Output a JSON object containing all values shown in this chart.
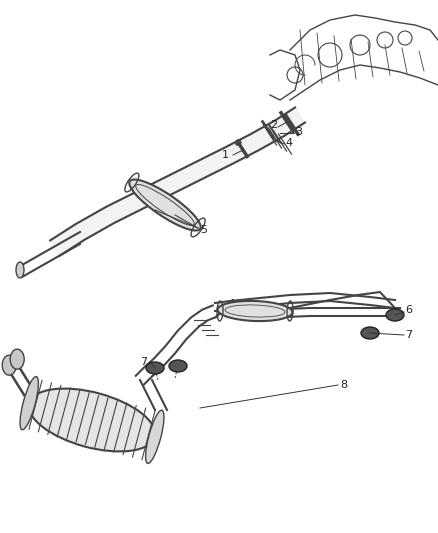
{
  "bg_color": "#ffffff",
  "fig_width": 4.38,
  "fig_height": 5.33,
  "dpi": 100,
  "line_color": "#444444",
  "label_fontsize": 7.5,
  "dark_color": "#333333",
  "gray_fill": "#888888",
  "light_gray": "#cccccc"
}
